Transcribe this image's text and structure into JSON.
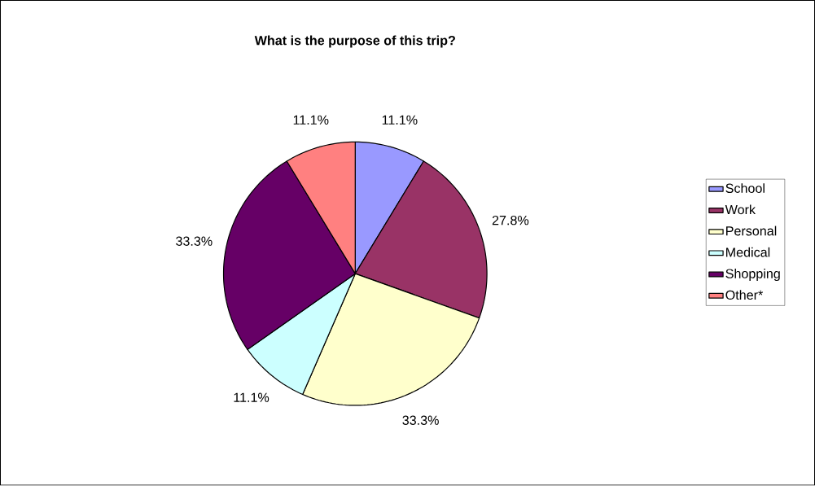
{
  "chart_data": {
    "type": "pie",
    "title": "What is the purpose of this trip?",
    "categories": [
      "School",
      "Work",
      "Personal",
      "Medical",
      "Shopping",
      "Other*"
    ],
    "values": [
      11.1,
      27.8,
      33.3,
      11.1,
      33.3,
      11.1
    ],
    "value_labels": [
      "11.1%",
      "27.8%",
      "33.3%",
      "11.1%",
      "33.3%",
      "11.1%"
    ],
    "colors": [
      "#9999ff",
      "#993366",
      "#ffffcc",
      "#ccffff",
      "#660066",
      "#ff8080"
    ],
    "legend": "right"
  }
}
